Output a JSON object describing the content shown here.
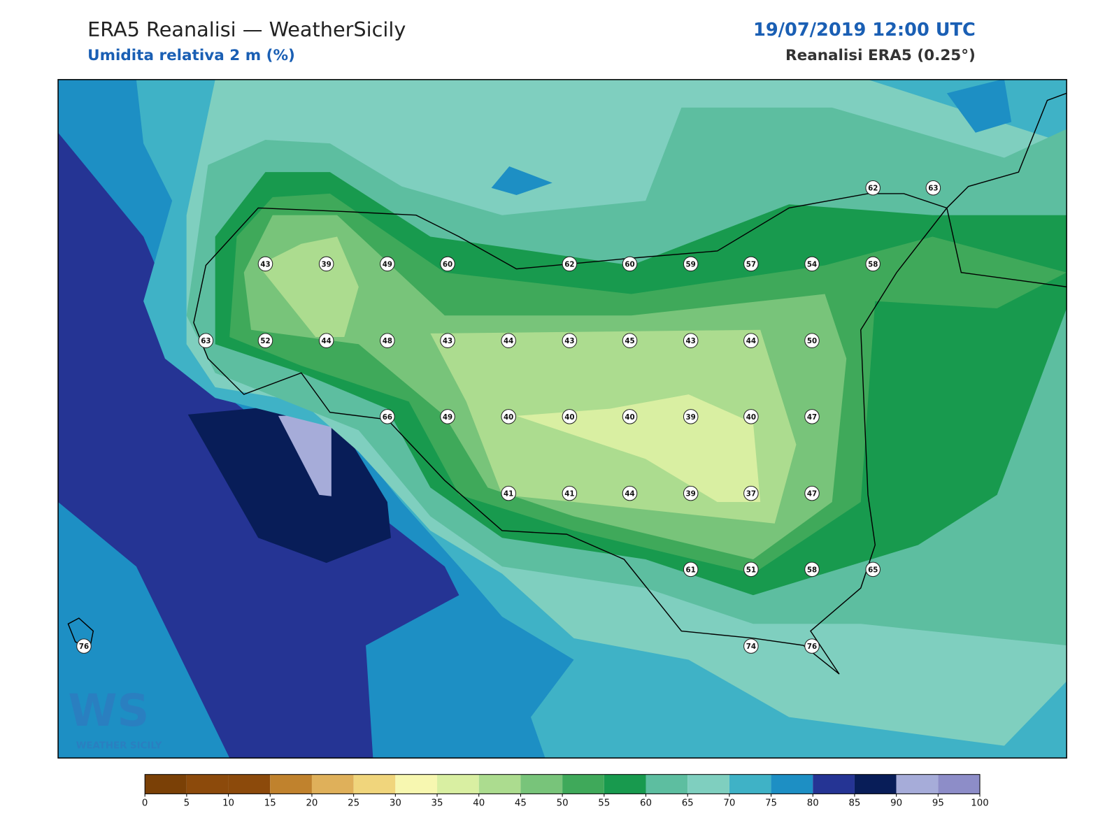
{
  "header": {
    "title": "ERA5 Reanalisi — WeatherSicily",
    "subtitle": "Umidita relativa 2 m (%)",
    "datetime": "19/07/2019 12:00 UTC",
    "source": "Reanalisi ERA5 (0.25°)"
  },
  "stations": [
    62,
    63,
    43,
    39,
    49,
    60,
    62,
    60,
    59,
    57,
    54,
    58,
    63,
    52,
    44,
    48,
    43,
    44,
    43,
    45,
    43,
    44,
    50,
    66,
    49,
    40,
    40,
    40,
    39,
    40,
    47,
    41,
    41,
    44,
    39,
    37,
    47,
    61,
    51,
    58,
    65,
    76,
    74,
    76
  ],
  "colorbar": {
    "levels": [
      0,
      5,
      10,
      15,
      20,
      25,
      30,
      35,
      40,
      45,
      50,
      55,
      60,
      65,
      70,
      75,
      80,
      85,
      90,
      95,
      100
    ],
    "colors": [
      "#7a4006",
      "#8c4a0b",
      "#8c4a0b",
      "#c0822d",
      "#dfb05a",
      "#f0d57c",
      "#f7f7b0",
      "#d9efa2",
      "#acdc8f",
      "#78c47a",
      "#3fa95a",
      "#189a4e",
      "#5dbea0",
      "#7fcfbf",
      "#3fb2c6",
      "#1d8fc4",
      "#253494",
      "#081d58",
      "#a6acd9",
      "#8d8dc8"
    ]
  },
  "logo": {
    "mark": "WS",
    "name": "WEATHER SICILY"
  }
}
